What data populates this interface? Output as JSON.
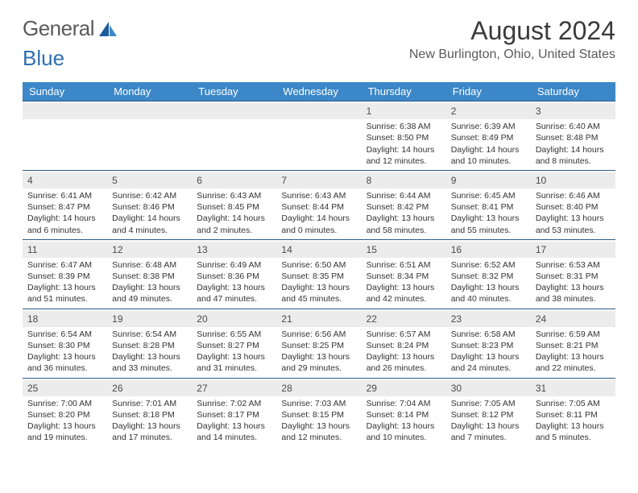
{
  "brand": {
    "part1": "General",
    "part2": "Blue"
  },
  "title": "August 2024",
  "location": "New Burlington, Ohio, United States",
  "dow": [
    "Sunday",
    "Monday",
    "Tuesday",
    "Wednesday",
    "Thursday",
    "Friday",
    "Saturday"
  ],
  "colors": {
    "header_bg": "#3b87c8",
    "week_border": "#2c5a87",
    "daynum_bg": "#ececec",
    "text": "#333333",
    "title": "#3a3a3a"
  },
  "weeks": [
    [
      {
        "n": "",
        "d": ""
      },
      {
        "n": "",
        "d": ""
      },
      {
        "n": "",
        "d": ""
      },
      {
        "n": "",
        "d": ""
      },
      {
        "n": "1",
        "d": "Sunrise: 6:38 AM\nSunset: 8:50 PM\nDaylight: 14 hours and 12 minutes."
      },
      {
        "n": "2",
        "d": "Sunrise: 6:39 AM\nSunset: 8:49 PM\nDaylight: 14 hours and 10 minutes."
      },
      {
        "n": "3",
        "d": "Sunrise: 6:40 AM\nSunset: 8:48 PM\nDaylight: 14 hours and 8 minutes."
      }
    ],
    [
      {
        "n": "4",
        "d": "Sunrise: 6:41 AM\nSunset: 8:47 PM\nDaylight: 14 hours and 6 minutes."
      },
      {
        "n": "5",
        "d": "Sunrise: 6:42 AM\nSunset: 8:46 PM\nDaylight: 14 hours and 4 minutes."
      },
      {
        "n": "6",
        "d": "Sunrise: 6:43 AM\nSunset: 8:45 PM\nDaylight: 14 hours and 2 minutes."
      },
      {
        "n": "7",
        "d": "Sunrise: 6:43 AM\nSunset: 8:44 PM\nDaylight: 14 hours and 0 minutes."
      },
      {
        "n": "8",
        "d": "Sunrise: 6:44 AM\nSunset: 8:42 PM\nDaylight: 13 hours and 58 minutes."
      },
      {
        "n": "9",
        "d": "Sunrise: 6:45 AM\nSunset: 8:41 PM\nDaylight: 13 hours and 55 minutes."
      },
      {
        "n": "10",
        "d": "Sunrise: 6:46 AM\nSunset: 8:40 PM\nDaylight: 13 hours and 53 minutes."
      }
    ],
    [
      {
        "n": "11",
        "d": "Sunrise: 6:47 AM\nSunset: 8:39 PM\nDaylight: 13 hours and 51 minutes."
      },
      {
        "n": "12",
        "d": "Sunrise: 6:48 AM\nSunset: 8:38 PM\nDaylight: 13 hours and 49 minutes."
      },
      {
        "n": "13",
        "d": "Sunrise: 6:49 AM\nSunset: 8:36 PM\nDaylight: 13 hours and 47 minutes."
      },
      {
        "n": "14",
        "d": "Sunrise: 6:50 AM\nSunset: 8:35 PM\nDaylight: 13 hours and 45 minutes."
      },
      {
        "n": "15",
        "d": "Sunrise: 6:51 AM\nSunset: 8:34 PM\nDaylight: 13 hours and 42 minutes."
      },
      {
        "n": "16",
        "d": "Sunrise: 6:52 AM\nSunset: 8:32 PM\nDaylight: 13 hours and 40 minutes."
      },
      {
        "n": "17",
        "d": "Sunrise: 6:53 AM\nSunset: 8:31 PM\nDaylight: 13 hours and 38 minutes."
      }
    ],
    [
      {
        "n": "18",
        "d": "Sunrise: 6:54 AM\nSunset: 8:30 PM\nDaylight: 13 hours and 36 minutes."
      },
      {
        "n": "19",
        "d": "Sunrise: 6:54 AM\nSunset: 8:28 PM\nDaylight: 13 hours and 33 minutes."
      },
      {
        "n": "20",
        "d": "Sunrise: 6:55 AM\nSunset: 8:27 PM\nDaylight: 13 hours and 31 minutes."
      },
      {
        "n": "21",
        "d": "Sunrise: 6:56 AM\nSunset: 8:25 PM\nDaylight: 13 hours and 29 minutes."
      },
      {
        "n": "22",
        "d": "Sunrise: 6:57 AM\nSunset: 8:24 PM\nDaylight: 13 hours and 26 minutes."
      },
      {
        "n": "23",
        "d": "Sunrise: 6:58 AM\nSunset: 8:23 PM\nDaylight: 13 hours and 24 minutes."
      },
      {
        "n": "24",
        "d": "Sunrise: 6:59 AM\nSunset: 8:21 PM\nDaylight: 13 hours and 22 minutes."
      }
    ],
    [
      {
        "n": "25",
        "d": "Sunrise: 7:00 AM\nSunset: 8:20 PM\nDaylight: 13 hours and 19 minutes."
      },
      {
        "n": "26",
        "d": "Sunrise: 7:01 AM\nSunset: 8:18 PM\nDaylight: 13 hours and 17 minutes."
      },
      {
        "n": "27",
        "d": "Sunrise: 7:02 AM\nSunset: 8:17 PM\nDaylight: 13 hours and 14 minutes."
      },
      {
        "n": "28",
        "d": "Sunrise: 7:03 AM\nSunset: 8:15 PM\nDaylight: 13 hours and 12 minutes."
      },
      {
        "n": "29",
        "d": "Sunrise: 7:04 AM\nSunset: 8:14 PM\nDaylight: 13 hours and 10 minutes."
      },
      {
        "n": "30",
        "d": "Sunrise: 7:05 AM\nSunset: 8:12 PM\nDaylight: 13 hours and 7 minutes."
      },
      {
        "n": "31",
        "d": "Sunrise: 7:05 AM\nSunset: 8:11 PM\nDaylight: 13 hours and 5 minutes."
      }
    ]
  ]
}
